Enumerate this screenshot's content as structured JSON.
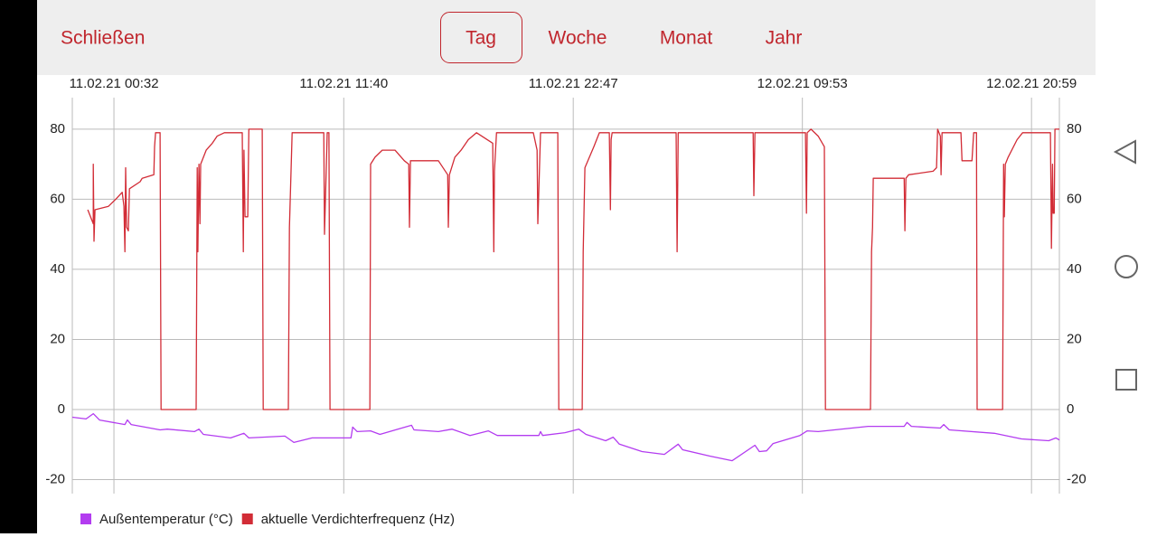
{
  "header": {
    "close": "Schließen",
    "tabs": [
      "Tag",
      "Woche",
      "Monat",
      "Jahr"
    ]
  },
  "chart_data": {
    "type": "line",
    "xlim": [
      -89,
      2780
    ],
    "xticks": [
      {
        "value": 32,
        "label": "11.02.21 00:32"
      },
      {
        "value": 700,
        "label": "11.02.21 11:40"
      },
      {
        "value": 1367,
        "label": "11.02.21 22:47"
      },
      {
        "value": 2033,
        "label": "12.02.21 09:53"
      },
      {
        "value": 2699,
        "label": "12.02.21 20:59"
      }
    ],
    "ylim": [
      -24,
      89
    ],
    "yticks": [
      -20,
      0,
      20,
      40,
      60,
      80
    ],
    "grid": true,
    "series": [
      {
        "name": "Außentemperatur (°C)",
        "color": "#b33cf0",
        "x": [
          -89,
          -49,
          -28,
          -10,
          64,
          71,
          82,
          166,
          187,
          266,
          279,
          292,
          371,
          410,
          424,
          529,
          555,
          608,
          660,
          721,
          726,
          739,
          778,
          805,
          857,
          897,
          904,
          975,
          1015,
          1067,
          1120,
          1146,
          1267,
          1272,
          1278,
          1343,
          1383,
          1404,
          1461,
          1483,
          1501,
          1567,
          1632,
          1672,
          1685,
          1764,
          1829,
          1895,
          1908,
          1929,
          1948,
          2026,
          2047,
          2079,
          2224,
          2329,
          2337,
          2350,
          2434,
          2444,
          2460,
          2591,
          2670,
          2749,
          2770,
          2780
        ],
        "values": [
          -2.2,
          -2.7,
          -1.2,
          -3,
          -4.3,
          -3,
          -4.3,
          -5.8,
          -5.6,
          -6.3,
          -5.6,
          -7.1,
          -8.1,
          -6.8,
          -8.1,
          -7.6,
          -9.4,
          -8.1,
          -8.1,
          -8.1,
          -5,
          -6.3,
          -6.1,
          -7.1,
          -5.6,
          -4.5,
          -5.8,
          -6.3,
          -5.6,
          -7.4,
          -6.1,
          -7.4,
          -7.4,
          -6.3,
          -7.4,
          -6.6,
          -5.6,
          -7.1,
          -8.9,
          -7.9,
          -9.9,
          -12,
          -12.8,
          -9.9,
          -11.5,
          -13.3,
          -14.6,
          -10.2,
          -12,
          -11.8,
          -9.7,
          -7.4,
          -6.1,
          -6.3,
          -4.8,
          -4.8,
          -3.7,
          -4.8,
          -5.3,
          -4.3,
          -5.8,
          -6.8,
          -8.4,
          -8.9,
          -8.1,
          -8.7
        ]
      },
      {
        "name": "aktuelle Verdichterfrequenz (Hz)",
        "color": "#d22c36",
        "x": [
          -44,
          -28,
          -28,
          -26,
          -23,
          16,
          37,
          56,
          61,
          64,
          66,
          69,
          74,
          77,
          108,
          114,
          148,
          150,
          153,
          166,
          169,
          271,
          274,
          276,
          279,
          282,
          284,
          300,
          318,
          332,
          353,
          405,
          408,
          410,
          413,
          421,
          424,
          463,
          466,
          539,
          542,
          550,
          642,
          644,
          652,
          657,
          660,
          776,
          778,
          791,
          812,
          849,
          876,
          889,
          891,
          894,
          975,
          1002,
          1004,
          1007,
          1023,
          1041,
          1062,
          1086,
          1133,
          1136,
          1138,
          1144,
          1251,
          1262,
          1264,
          1272,
          1322,
          1325,
          1393,
          1396,
          1401,
          1427,
          1443,
          1472,
          1475,
          1477,
          1480,
          1666,
          1669,
          1672,
          1890,
          1892,
          1895,
          2042,
          2045,
          2047,
          2058,
          2079,
          2097,
          2100,
          2231,
          2234,
          2237,
          2239,
          2329,
          2331,
          2334,
          2342,
          2413,
          2423,
          2426,
          2434,
          2436,
          2439,
          2494,
          2497,
          2526,
          2531,
          2539,
          2541,
          2615,
          2618,
          2620,
          2623,
          2631,
          2657,
          2673,
          2754,
          2757,
          2760,
          2762,
          2765,
          2767,
          2780
        ],
        "values": [
          57,
          53,
          70,
          48,
          57,
          58,
          60,
          62,
          58,
          45,
          69,
          52,
          51,
          63,
          65,
          66,
          67,
          75,
          79,
          79,
          0,
          0,
          69,
          45,
          70,
          53,
          70,
          74,
          76,
          78,
          79,
          79,
          45,
          74,
          55,
          55,
          80,
          80,
          0,
          0,
          52,
          79,
          79,
          50,
          79,
          79,
          0,
          0,
          70,
          72,
          74,
          74,
          71,
          70,
          52,
          71,
          71,
          67,
          52,
          67,
          72,
          74,
          77,
          79,
          76,
          45,
          68,
          79,
          79,
          74,
          53,
          79,
          79,
          0,
          0,
          45,
          69,
          75,
          79,
          79,
          57,
          77,
          79,
          79,
          45,
          79,
          79,
          61,
          79,
          79,
          56,
          79,
          80,
          78,
          75,
          0,
          0,
          45,
          52,
          66,
          66,
          51,
          66,
          67,
          68,
          69,
          80,
          78,
          67,
          79,
          79,
          71,
          71,
          79,
          79,
          0,
          0,
          70,
          55,
          70,
          72,
          77,
          79,
          79,
          46,
          70,
          56,
          56,
          80,
          80
        ]
      }
    ]
  }
}
